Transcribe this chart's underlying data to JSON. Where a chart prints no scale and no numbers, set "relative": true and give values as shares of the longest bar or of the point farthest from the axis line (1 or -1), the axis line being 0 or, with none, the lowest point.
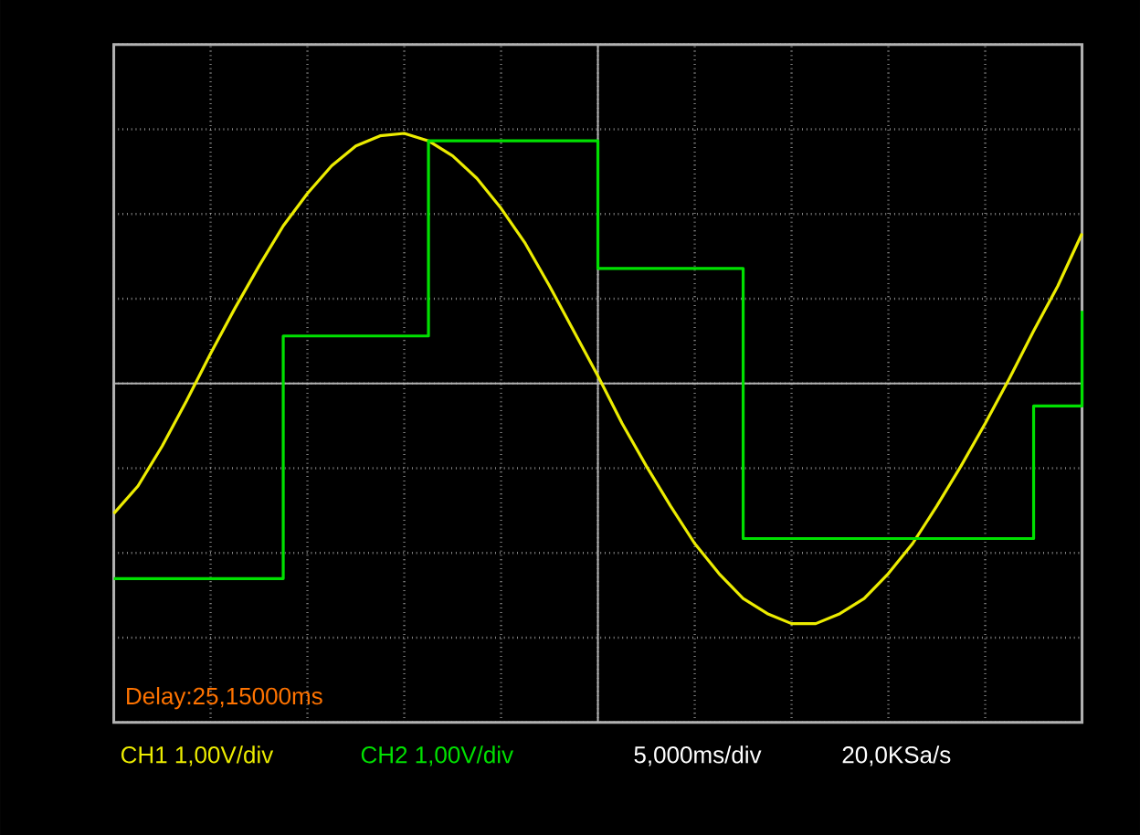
{
  "chart_data": {
    "type": "line",
    "relative": true,
    "grid": true,
    "categories": [
      null,
      null,
      null,
      null,
      null,
      null,
      null,
      null,
      null,
      null,
      null,
      null,
      null,
      null,
      null,
      null,
      null,
      null,
      null,
      null,
      null,
      null,
      null,
      null,
      null,
      null,
      null,
      null,
      null,
      null,
      null,
      null,
      null,
      null,
      null,
      null,
      null,
      null,
      null,
      null,
      null
    ],
    "series": [
      {
        "color": "#ecec00",
        "values": [
          -0.52,
          -0.41,
          -0.25,
          -0.07,
          0.12,
          0.3,
          0.47,
          0.63,
          0.76,
          0.87,
          0.95,
          0.99,
          1.0,
          0.97,
          0.91,
          0.82,
          0.7,
          0.56,
          0.39,
          0.21,
          0.03,
          -0.16,
          -0.33,
          -0.49,
          -0.64,
          -0.76,
          -0.86,
          -0.92,
          -0.96,
          -0.96,
          -0.92,
          -0.86,
          -0.76,
          -0.64,
          -0.49,
          -0.33,
          -0.16,
          0.02,
          0.21,
          0.39,
          0.6
        ]
      },
      {
        "type": "step",
        "color": "#00e000",
        "values": [
          -0.78,
          -0.78,
          -0.78,
          -0.78,
          -0.78,
          -0.78,
          -0.78,
          0.19,
          0.19,
          0.19,
          0.19,
          0.19,
          0.19,
          0.97,
          0.97,
          0.97,
          0.97,
          0.97,
          0.97,
          0.97,
          0.46,
          0.46,
          0.46,
          0.46,
          0.46,
          0.46,
          -0.62,
          -0.62,
          -0.62,
          -0.62,
          -0.62,
          -0.62,
          -0.62,
          -0.62,
          -0.62,
          -0.62,
          -0.62,
          -0.62,
          -0.09,
          -0.09,
          0.29
        ]
      }
    ],
    "annotations": [
      "Delay:25,15000ms",
      "CH1 1,00V/div",
      "CH2 1,00V/div",
      "5,000ms/div",
      "20,0KSa/s"
    ]
  }
}
